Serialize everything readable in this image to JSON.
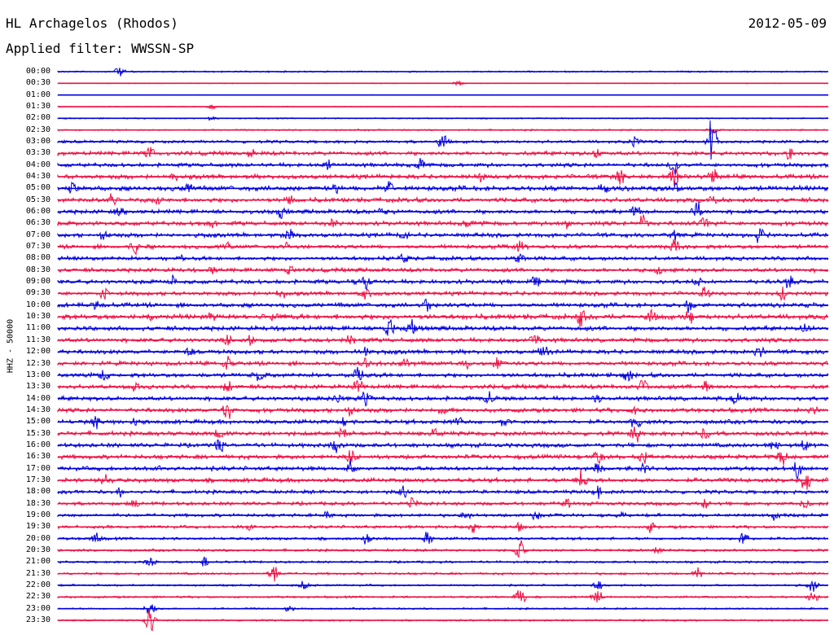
{
  "header": {
    "station": "HL Archagelos (Rhodos)",
    "date": "2012-05-09",
    "filter": "Applied filter: WWSSN-SP"
  },
  "side_label": "HHZ - 50000",
  "colors": {
    "even_trace": "#0000dd",
    "odd_trace": "#ee1144"
  },
  "chart_data": {
    "type": "line",
    "description_kind": "helicorder",
    "rows": [
      "00:00",
      "00:30",
      "01:00",
      "01:30",
      "02:00",
      "02:30",
      "03:00",
      "03:30",
      "04:00",
      "04:30",
      "05:00",
      "05:30",
      "06:00",
      "06:30",
      "07:00",
      "07:30",
      "08:00",
      "08:30",
      "09:00",
      "09:30",
      "10:00",
      "10:30",
      "11:00",
      "11:30",
      "12:00",
      "12:30",
      "13:00",
      "13:30",
      "14:00",
      "14:30",
      "15:00",
      "15:30",
      "16:00",
      "16:30",
      "17:00",
      "17:30",
      "18:00",
      "18:30",
      "19:00",
      "19:30",
      "20:00",
      "20:30",
      "21:00",
      "21:30",
      "22:00",
      "22:30",
      "23:00",
      "23:30"
    ],
    "activity": [
      0.3,
      0.15,
      0.1,
      0.15,
      0.25,
      0.3,
      0.6,
      0.8,
      0.8,
      0.9,
      1.0,
      0.9,
      0.85,
      0.85,
      0.85,
      0.8,
      0.8,
      0.8,
      0.85,
      0.8,
      0.9,
      1.0,
      0.9,
      0.85,
      0.85,
      0.85,
      0.85,
      0.85,
      0.85,
      0.85,
      0.85,
      0.85,
      0.85,
      0.85,
      0.85,
      0.85,
      0.75,
      0.7,
      0.65,
      0.6,
      0.55,
      0.5,
      0.45,
      0.45,
      0.4,
      0.4,
      0.35,
      0.35
    ],
    "events": [
      [
        [
          0.08,
          9
        ]
      ],
      [
        [
          0.52,
          6
        ]
      ],
      [],
      [
        [
          0.2,
          4
        ]
      ],
      [
        [
          0.2,
          4
        ]
      ],
      [
        [
          0.85,
          6
        ]
      ],
      [
        [
          0.5,
          14
        ],
        [
          0.85,
          40
        ],
        [
          0.75,
          10
        ]
      ],
      [
        [
          0.12,
          10
        ],
        [
          0.25,
          9
        ],
        [
          0.7,
          9
        ],
        [
          0.95,
          11
        ]
      ],
      [
        [
          0.35,
          9
        ],
        [
          0.47,
          12
        ],
        [
          0.8,
          16
        ]
      ],
      [
        [
          0.15,
          8
        ],
        [
          0.55,
          9
        ],
        [
          0.73,
          14
        ],
        [
          0.8,
          13
        ],
        [
          0.85,
          12
        ]
      ],
      [
        [
          0.02,
          11
        ],
        [
          0.17,
          10
        ],
        [
          0.36,
          10
        ],
        [
          0.43,
          14
        ],
        [
          0.71,
          10
        ],
        [
          0.8,
          13
        ]
      ],
      [
        [
          0.07,
          10
        ],
        [
          0.13,
          8
        ],
        [
          0.3,
          9
        ],
        [
          0.85,
          10
        ]
      ],
      [
        [
          0.08,
          10
        ],
        [
          0.29,
          9
        ],
        [
          0.42,
          10
        ],
        [
          0.75,
          12
        ],
        [
          0.83,
          16
        ]
      ],
      [
        [
          0.2,
          8
        ],
        [
          0.36,
          10
        ],
        [
          0.53,
          10
        ],
        [
          0.66,
          8
        ],
        [
          0.76,
          14
        ],
        [
          0.84,
          11
        ]
      ],
      [
        [
          0.06,
          10
        ],
        [
          0.3,
          12
        ],
        [
          0.45,
          9
        ],
        [
          0.8,
          12
        ],
        [
          0.91,
          12
        ]
      ],
      [
        [
          0.1,
          12
        ],
        [
          0.22,
          9
        ],
        [
          0.3,
          8
        ],
        [
          0.6,
          11
        ],
        [
          0.8,
          14
        ]
      ],
      [
        [
          0.16,
          6
        ],
        [
          0.45,
          9
        ],
        [
          0.6,
          10
        ]
      ],
      [
        [
          0.2,
          8
        ],
        [
          0.3,
          9
        ],
        [
          0.78,
          9
        ]
      ],
      [
        [
          0.15,
          10
        ],
        [
          0.4,
          12
        ],
        [
          0.62,
          9
        ],
        [
          0.83,
          10
        ],
        [
          0.95,
          12
        ]
      ],
      [
        [
          0.06,
          9
        ],
        [
          0.29,
          9
        ],
        [
          0.4,
          10
        ],
        [
          0.84,
          11
        ],
        [
          0.94,
          10
        ]
      ],
      [
        [
          0.05,
          8
        ],
        [
          0.48,
          12
        ],
        [
          0.82,
          12
        ]
      ],
      [
        [
          0.12,
          9
        ],
        [
          0.2,
          9
        ],
        [
          0.28,
          10
        ],
        [
          0.68,
          18
        ],
        [
          0.77,
          14
        ],
        [
          0.82,
          12
        ]
      ],
      [
        [
          0.43,
          16
        ],
        [
          0.46,
          14
        ],
        [
          0.97,
          10
        ]
      ],
      [
        [
          0.22,
          10
        ],
        [
          0.25,
          9
        ],
        [
          0.38,
          9
        ],
        [
          0.62,
          12
        ]
      ],
      [
        [
          0.17,
          9
        ],
        [
          0.4,
          12
        ],
        [
          0.63,
          11
        ],
        [
          0.91,
          12
        ]
      ],
      [
        [
          0.22,
          11
        ],
        [
          0.4,
          11
        ],
        [
          0.45,
          10
        ],
        [
          0.53,
          9
        ],
        [
          0.57,
          10
        ]
      ],
      [
        [
          0.06,
          11
        ],
        [
          0.26,
          12
        ],
        [
          0.39,
          13
        ],
        [
          0.74,
          12
        ]
      ],
      [
        [
          0.1,
          10
        ],
        [
          0.22,
          12
        ],
        [
          0.39,
          14
        ],
        [
          0.76,
          13
        ],
        [
          0.84,
          10
        ]
      ],
      [
        [
          0.36,
          12
        ],
        [
          0.4,
          16
        ],
        [
          0.56,
          13
        ],
        [
          0.7,
          9
        ],
        [
          0.88,
          11
        ]
      ],
      [
        [
          0.22,
          16
        ],
        [
          0.38,
          10
        ],
        [
          0.5,
          9
        ],
        [
          0.75,
          9
        ],
        [
          0.98,
          9
        ]
      ],
      [
        [
          0.05,
          12
        ],
        [
          0.1,
          9
        ],
        [
          0.37,
          11
        ],
        [
          0.52,
          10
        ],
        [
          0.58,
          9
        ],
        [
          0.75,
          14
        ]
      ],
      [
        [
          0.21,
          9
        ],
        [
          0.37,
          10
        ],
        [
          0.49,
          9
        ],
        [
          0.75,
          16
        ],
        [
          0.84,
          11
        ]
      ],
      [
        [
          0.21,
          12
        ],
        [
          0.36,
          12
        ],
        [
          0.93,
          11
        ],
        [
          0.97,
          12
        ]
      ],
      [
        [
          0.38,
          13
        ],
        [
          0.7,
          14
        ],
        [
          0.76,
          12
        ],
        [
          0.94,
          12
        ]
      ],
      [
        [
          0.13,
          9
        ],
        [
          0.38,
          12
        ],
        [
          0.7,
          10
        ],
        [
          0.76,
          12
        ],
        [
          0.96,
          13
        ]
      ],
      [
        [
          0.06,
          10
        ],
        [
          0.68,
          19
        ],
        [
          0.97,
          19
        ]
      ],
      [
        [
          0.08,
          8
        ],
        [
          0.45,
          12
        ],
        [
          0.7,
          10
        ]
      ],
      [
        [
          0.1,
          8
        ],
        [
          0.46,
          10
        ],
        [
          0.66,
          8
        ],
        [
          0.84,
          9
        ],
        [
          0.97,
          10
        ]
      ],
      [
        [
          0.35,
          9
        ],
        [
          0.53,
          8
        ],
        [
          0.62,
          10
        ],
        [
          0.73,
          8
        ],
        [
          0.93,
          8
        ]
      ],
      [
        [
          0.25,
          9
        ],
        [
          0.54,
          9
        ],
        [
          0.6,
          8
        ],
        [
          0.77,
          9
        ]
      ],
      [
        [
          0.05,
          9
        ],
        [
          0.4,
          8
        ],
        [
          0.48,
          12
        ],
        [
          0.89,
          14
        ]
      ],
      [
        [
          0.6,
          16
        ],
        [
          0.78,
          10
        ]
      ],
      [
        [
          0.12,
          10
        ],
        [
          0.19,
          8
        ]
      ],
      [
        [
          0.28,
          14
        ],
        [
          0.83,
          9
        ]
      ],
      [
        [
          0.32,
          7
        ],
        [
          0.7,
          8
        ],
        [
          0.98,
          10
        ]
      ],
      [
        [
          0.6,
          16
        ],
        [
          0.7,
          13
        ],
        [
          0.98,
          13
        ]
      ],
      [
        [
          0.12,
          14
        ],
        [
          0.3,
          6
        ]
      ],
      [
        [
          0.12,
          20
        ]
      ]
    ]
  }
}
